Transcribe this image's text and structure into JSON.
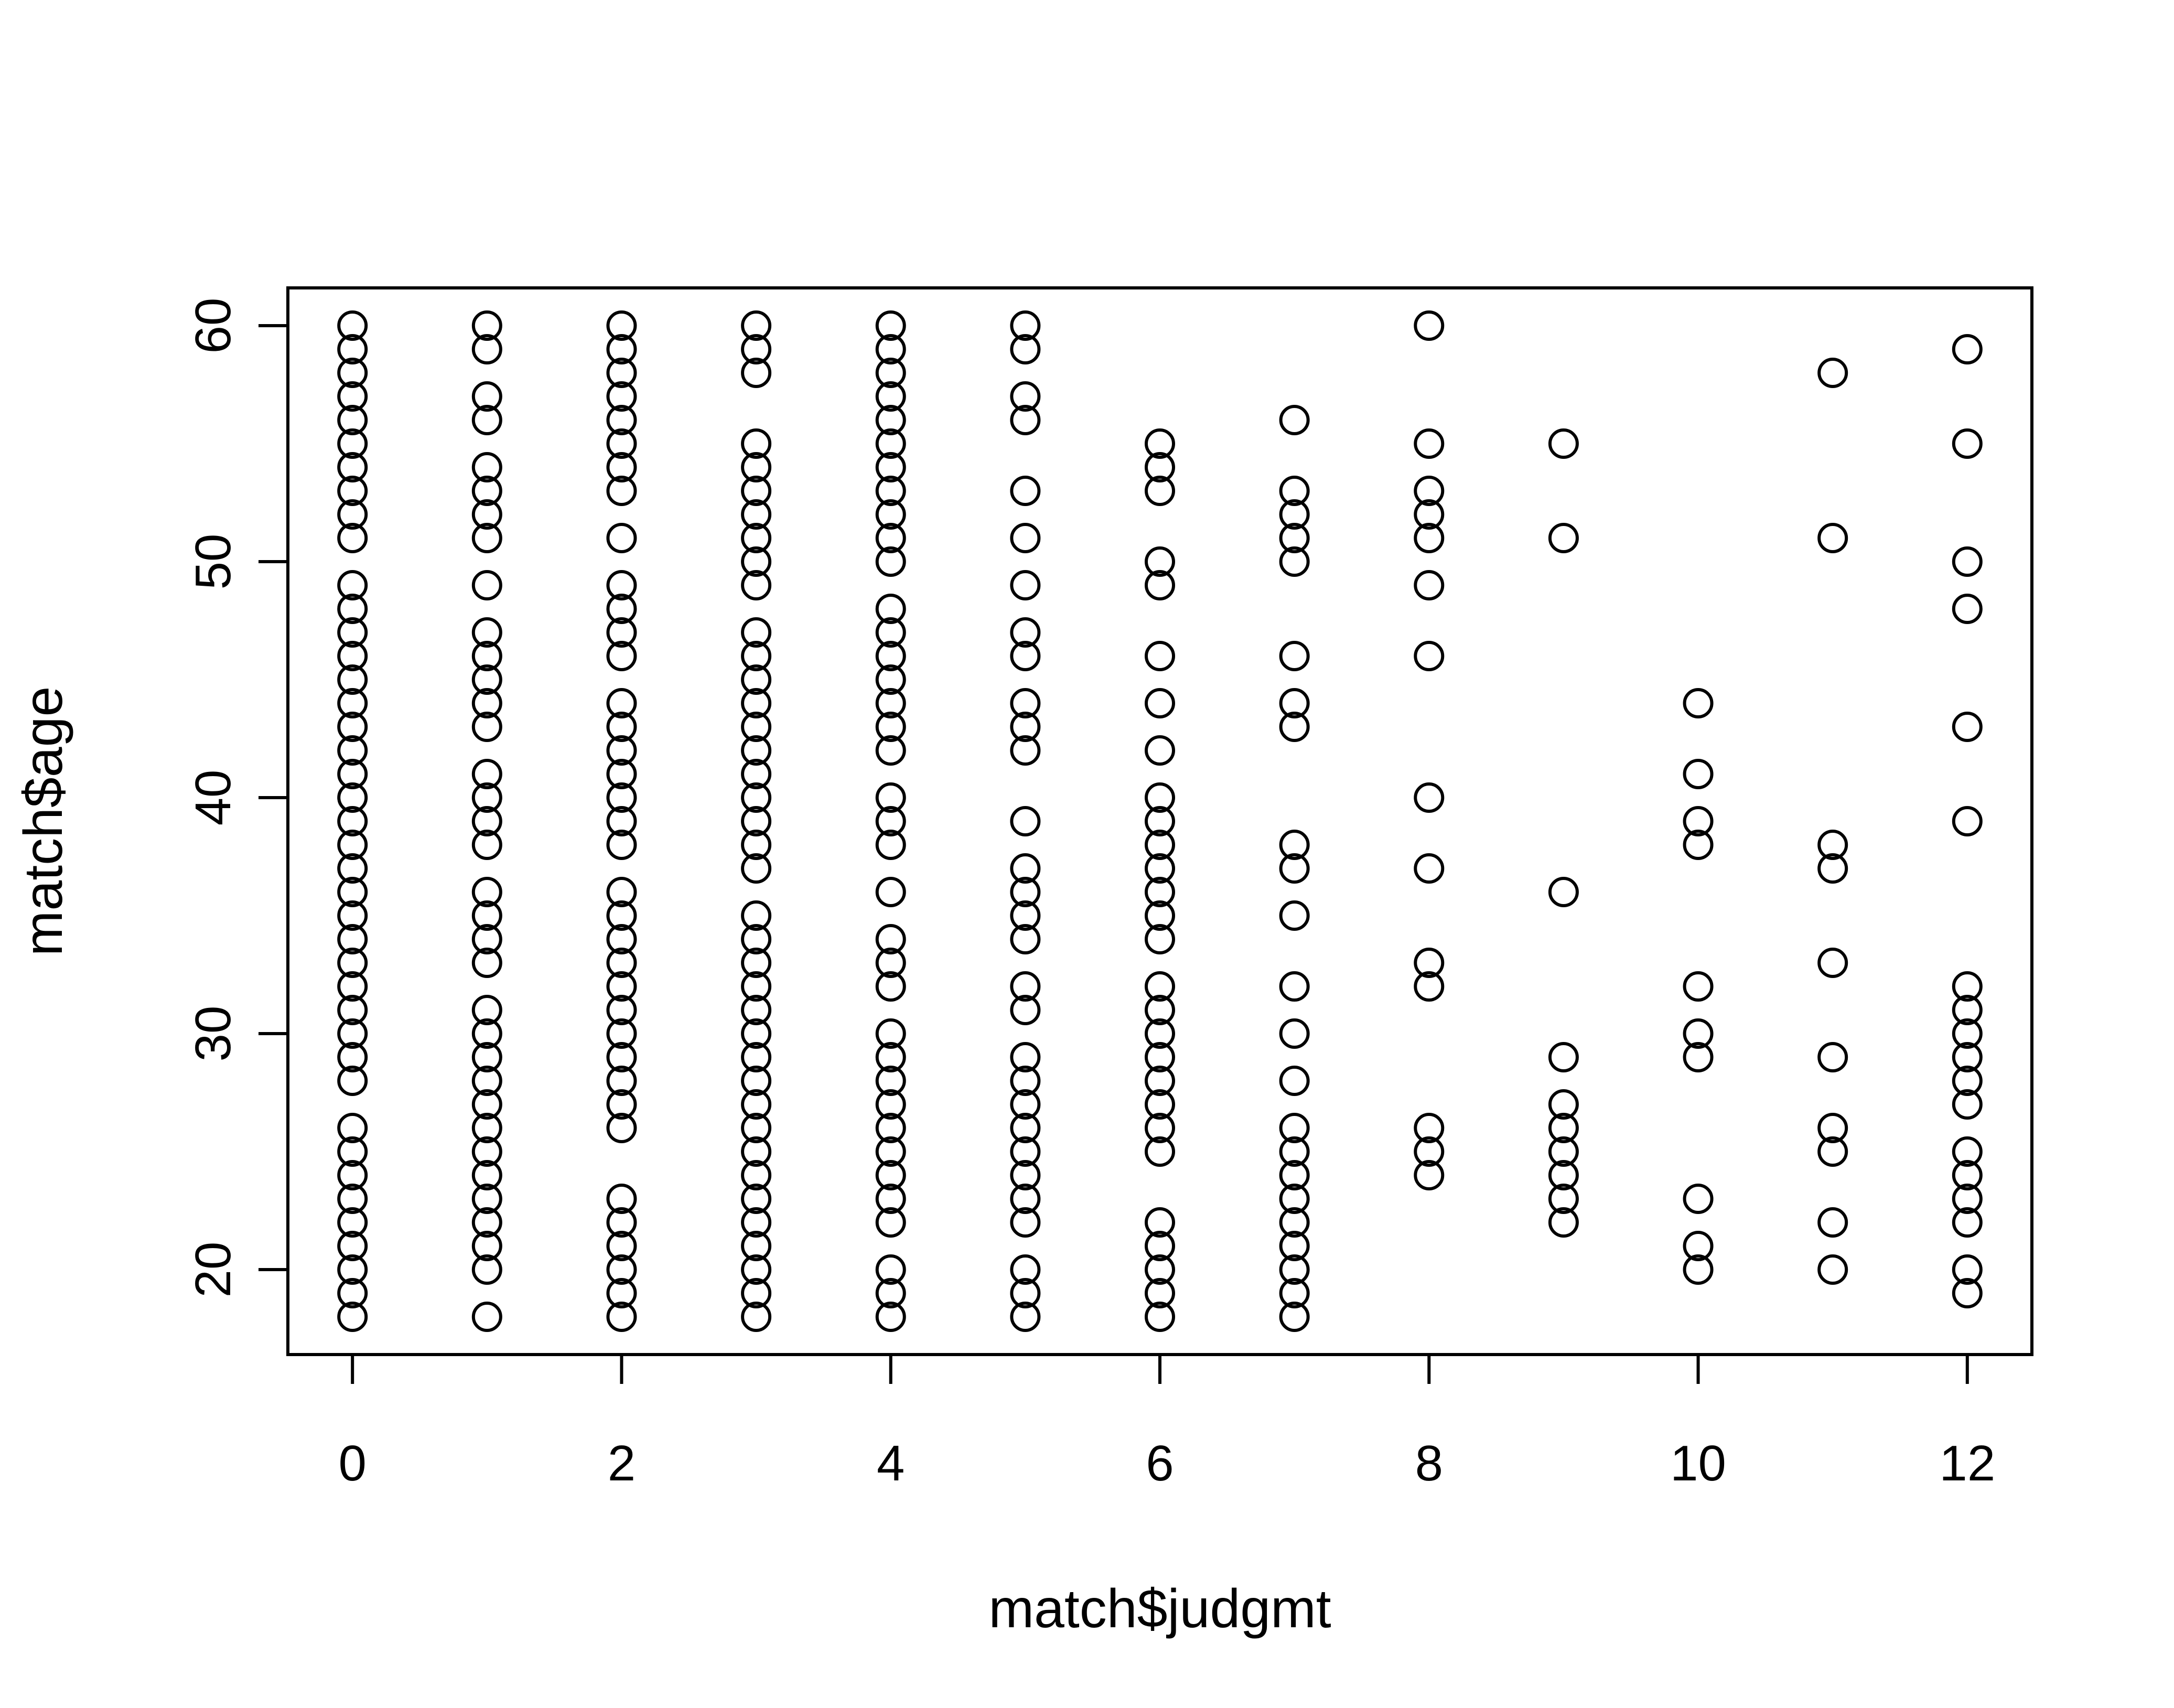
{
  "chart_data": {
    "type": "scatter",
    "title": "",
    "xlabel": "match$judgmt",
    "ylabel": "match$age",
    "xlim": [
      -0.48,
      12.48
    ],
    "ylim": [
      16.4,
      61.6
    ],
    "xticks": [
      0,
      2,
      4,
      6,
      8,
      10,
      12
    ],
    "yticks": [
      20,
      30,
      40,
      50,
      60
    ],
    "xtick_labels": [
      "0",
      "2",
      "4",
      "6",
      "8",
      "10",
      "12"
    ],
    "ytick_labels": [
      "20",
      "30",
      "40",
      "50",
      "60"
    ],
    "grid": false,
    "legend": "none",
    "marker": "open-circle",
    "color": "#000000",
    "points_by_x": [
      {
        "x": 0,
        "y": [
          18,
          19,
          20,
          21,
          22,
          23,
          24,
          25,
          26,
          28,
          29,
          30,
          31,
          32,
          33,
          34,
          35,
          36,
          37,
          38,
          39,
          40,
          41,
          42,
          43,
          44,
          45,
          46,
          47,
          48,
          49,
          51,
          52,
          53,
          54,
          55,
          56,
          57,
          58,
          59,
          60
        ]
      },
      {
        "x": 1,
        "y": [
          18,
          20,
          21,
          22,
          23,
          24,
          25,
          26,
          27,
          28,
          29,
          30,
          31,
          33,
          34,
          35,
          36,
          38,
          39,
          40,
          41,
          43,
          44,
          45,
          46,
          47,
          49,
          51,
          52,
          53,
          54,
          56,
          57,
          59,
          60
        ]
      },
      {
        "x": 2,
        "y": [
          18,
          19,
          20,
          21,
          22,
          23,
          26,
          27,
          28,
          29,
          30,
          31,
          32,
          33,
          34,
          35,
          36,
          38,
          39,
          40,
          41,
          42,
          43,
          44,
          46,
          47,
          48,
          49,
          51,
          53,
          54,
          55,
          56,
          57,
          58,
          59,
          60
        ]
      },
      {
        "x": 3,
        "y": [
          18,
          19,
          20,
          21,
          22,
          23,
          24,
          25,
          26,
          27,
          28,
          29,
          30,
          31,
          32,
          33,
          34,
          35,
          37,
          38,
          39,
          40,
          41,
          42,
          43,
          44,
          45,
          46,
          47,
          49,
          50,
          51,
          52,
          53,
          54,
          55,
          58,
          59,
          60
        ]
      },
      {
        "x": 4,
        "y": [
          18,
          19,
          20,
          22,
          23,
          24,
          25,
          26,
          27,
          28,
          29,
          30,
          32,
          33,
          34,
          36,
          38,
          39,
          40,
          42,
          43,
          44,
          45,
          46,
          47,
          48,
          50,
          51,
          52,
          53,
          54,
          55,
          56,
          57,
          58,
          59,
          60
        ]
      },
      {
        "x": 5,
        "y": [
          18,
          19,
          20,
          22,
          23,
          24,
          25,
          26,
          27,
          28,
          29,
          31,
          32,
          34,
          35,
          36,
          37,
          39,
          42,
          43,
          44,
          46,
          47,
          49,
          51,
          53,
          56,
          57,
          59,
          60
        ]
      },
      {
        "x": 6,
        "y": [
          18,
          19,
          20,
          21,
          22,
          25,
          26,
          27,
          28,
          29,
          30,
          31,
          32,
          34,
          35,
          36,
          37,
          38,
          39,
          40,
          42,
          44,
          46,
          49,
          50,
          53,
          54,
          55
        ]
      },
      {
        "x": 7,
        "y": [
          18,
          19,
          20,
          21,
          22,
          23,
          24,
          25,
          26,
          28,
          30,
          32,
          35,
          37,
          38,
          43,
          44,
          46,
          50,
          51,
          52,
          53,
          56
        ]
      },
      {
        "x": 8,
        "y": [
          24,
          25,
          26,
          32,
          33,
          37,
          40,
          46,
          49,
          51,
          52,
          53,
          55,
          60
        ]
      },
      {
        "x": 9,
        "y": [
          22,
          23,
          24,
          25,
          26,
          27,
          29,
          36,
          51,
          55
        ]
      },
      {
        "x": 10,
        "y": [
          20,
          21,
          23,
          29,
          30,
          32,
          38,
          39,
          41,
          44
        ]
      },
      {
        "x": 11,
        "y": [
          20,
          22,
          25,
          26,
          29,
          33,
          37,
          38,
          51,
          58
        ]
      },
      {
        "x": 12,
        "y": [
          19,
          20,
          22,
          23,
          24,
          25,
          27,
          28,
          29,
          30,
          31,
          32,
          39,
          43,
          48,
          50,
          55,
          59
        ]
      }
    ]
  }
}
